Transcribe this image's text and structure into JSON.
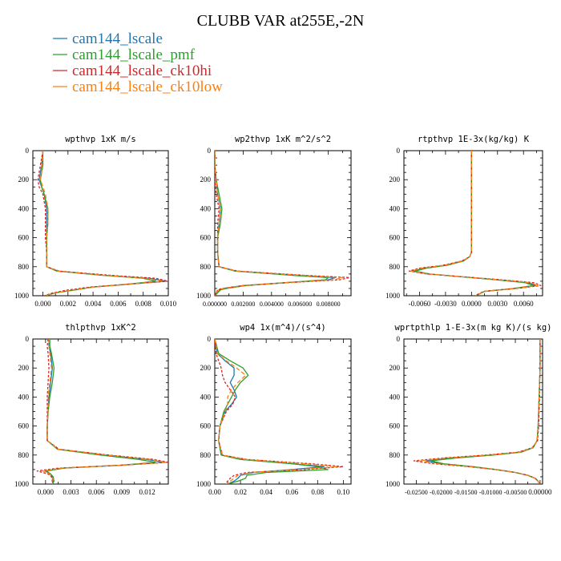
{
  "figure": {
    "title": "CLUBB VAR at255E,-2N",
    "legend": [
      {
        "name": "cam144_lscale",
        "color": "#1f77b4"
      },
      {
        "name": "cam144_lscale_pmf",
        "color": "#2ca02c"
      },
      {
        "name": "cam144_lscale_ck10hi",
        "color": "#d62728"
      },
      {
        "name": "cam144_lscale_ck10low",
        "color": "#ff7f0e"
      }
    ],
    "series_colors": [
      "#1f77b4",
      "#2ca02c",
      "#d62728",
      "#ff7f0e"
    ],
    "series_dash": [
      "",
      "",
      "3,2",
      "5,3"
    ]
  },
  "chart_data": [
    {
      "type": "line",
      "title": "wpthvp 1xK m/s",
      "xlim": [
        -0.0008,
        0.01
      ],
      "ylim": [
        1000,
        0
      ],
      "xticks": [
        "0.000",
        "0.002",
        "0.004",
        "0.006",
        "0.008",
        "0.010"
      ],
      "xtick_values": [
        0,
        0.002,
        0.004,
        0.006,
        0.008,
        0.01
      ],
      "yticks": [
        "0",
        "200",
        "400",
        "600",
        "800",
        "1000"
      ],
      "ytick_values": [
        0,
        200,
        400,
        600,
        800,
        1000
      ],
      "y": [
        0,
        100,
        150,
        200,
        250,
        300,
        400,
        500,
        600,
        700,
        800,
        830,
        860,
        880,
        900,
        920,
        940,
        960,
        980,
        1000
      ],
      "series": [
        {
          "values": [
            0.0,
            -0.0001,
            -0.0002,
            -0.0003,
            -0.0001,
            0.0001,
            0.0003,
            0.0003,
            0.0003,
            0.0003,
            0.0003,
            0.0012,
            0.005,
            0.0085,
            0.0098,
            0.007,
            0.004,
            0.0025,
            0.001,
            0.0002
          ]
        },
        {
          "values": [
            0.0,
            0.0,
            -0.0001,
            -0.0002,
            -0.0001,
            0.0001,
            0.0004,
            0.0004,
            0.0003,
            0.0003,
            0.0003,
            0.0011,
            0.0048,
            0.008,
            0.009,
            0.0068,
            0.004,
            0.0026,
            0.001,
            0.0002
          ]
        },
        {
          "values": [
            0.0,
            -0.0002,
            -0.0003,
            -0.0004,
            -0.0003,
            0.0,
            0.0002,
            0.0002,
            0.0002,
            0.0003,
            0.0003,
            0.0013,
            0.0055,
            0.009,
            0.01,
            0.0068,
            0.0038,
            0.002,
            0.0008,
            0.0001
          ]
        },
        {
          "values": [
            0.0,
            -0.0001,
            -0.0001,
            -0.0002,
            0.0,
            0.0002,
            0.0004,
            0.0004,
            0.0003,
            0.0003,
            0.0003,
            0.0012,
            0.005,
            0.0082,
            0.0095,
            0.007,
            0.0041,
            0.0024,
            0.001,
            0.0002
          ]
        }
      ]
    },
    {
      "type": "line",
      "title": "wp2thvp 1xK m^2/s^2",
      "xlim": [
        0,
        0.0096
      ],
      "ylim": [
        1000,
        0
      ],
      "xticks": [
        "0.000000",
        "0.002000",
        "0.004000",
        "0.006000",
        "0.008000"
      ],
      "xtick_values": [
        0,
        0.002,
        0.004,
        0.006,
        0.008
      ],
      "yticks": [
        "0",
        "200",
        "400",
        "600",
        "800",
        "1000"
      ],
      "ytick_values": [
        0,
        200,
        400,
        600,
        800,
        1000
      ],
      "y": [
        0,
        100,
        200,
        300,
        400,
        500,
        600,
        700,
        800,
        830,
        860,
        875,
        890,
        910,
        930,
        950,
        960,
        980,
        1000
      ],
      "series": [
        {
          "values": [
            0.0,
            0.0,
            0.0001,
            0.0002,
            0.0004,
            0.0003,
            0.0002,
            0.0002,
            0.0003,
            0.0015,
            0.006,
            0.0085,
            0.008,
            0.005,
            0.002,
            0.0006,
            0.0003,
            0.0001,
            0.0
          ]
        },
        {
          "values": [
            0.0,
            0.0,
            0.0001,
            0.0003,
            0.0005,
            0.0004,
            0.0002,
            0.0002,
            0.0003,
            0.0014,
            0.0055,
            0.008,
            0.0078,
            0.005,
            0.0022,
            0.0008,
            0.0004,
            0.0002,
            0.0
          ]
        },
        {
          "values": [
            0.0,
            0.0,
            0.0,
            0.0001,
            0.0003,
            0.0002,
            0.0002,
            0.0002,
            0.0003,
            0.0016,
            0.0065,
            0.0095,
            0.0088,
            0.0052,
            0.002,
            0.0005,
            0.0002,
            0.0001,
            0.0
          ]
        },
        {
          "values": [
            0.0,
            0.0,
            0.0001,
            0.0002,
            0.0004,
            0.0003,
            0.0002,
            0.0002,
            0.0003,
            0.0015,
            0.0062,
            0.009,
            0.0084,
            0.0051,
            0.0021,
            0.0006,
            0.0003,
            0.0001,
            0.0
          ]
        }
      ]
    },
    {
      "type": "line",
      "title": "rtpthvp 1E-3x(kg/kg) K",
      "xlim": [
        -0.0078,
        0.0082
      ],
      "ylim": [
        1000,
        0
      ],
      "xticks": [
        "-0.0060",
        "-0.0030",
        "0.0000",
        "0.0030",
        "0.0060"
      ],
      "xtick_values": [
        -0.006,
        -0.003,
        0,
        0.003,
        0.006
      ],
      "yticks": [
        "0",
        "200",
        "400",
        "600",
        "800",
        "1000"
      ],
      "ytick_values": [
        0,
        200,
        400,
        600,
        800,
        1000
      ],
      "y": [
        0,
        200,
        400,
        600,
        700,
        730,
        760,
        790,
        810,
        830,
        850,
        870,
        890,
        910,
        930,
        950,
        970,
        985,
        1000
      ],
      "series": [
        {
          "values": [
            0.0,
            0.0,
            0.0,
            0.0,
            0.0,
            -0.0002,
            -0.001,
            -0.003,
            -0.0055,
            -0.0068,
            -0.005,
            -0.001,
            0.003,
            0.0065,
            0.0075,
            0.005,
            0.0015,
            0.001,
            0.0005
          ]
        },
        {
          "values": [
            0.0,
            0.0,
            0.0,
            0.0,
            0.0,
            -0.0002,
            -0.0009,
            -0.0028,
            -0.0052,
            -0.0065,
            -0.0048,
            -0.001,
            0.0028,
            0.0062,
            0.0072,
            0.0048,
            0.0015,
            0.001,
            0.0005
          ]
        },
        {
          "values": [
            0.0,
            0.0,
            0.0,
            0.0,
            0.0,
            -0.0002,
            -0.0011,
            -0.0033,
            -0.006,
            -0.0072,
            -0.0052,
            -0.0008,
            0.0035,
            0.0072,
            0.008,
            0.0052,
            0.0014,
            0.0009,
            0.0004
          ]
        },
        {
          "values": [
            0.0,
            0.0,
            0.0,
            0.0,
            0.0,
            -0.0002,
            -0.001,
            -0.0031,
            -0.0057,
            -0.007,
            -0.005,
            -0.0009,
            0.0032,
            0.0068,
            0.0077,
            0.005,
            0.0015,
            0.001,
            0.0005
          ]
        }
      ]
    },
    {
      "type": "line",
      "title": "thlpthvp 1xK^2",
      "xlim": [
        -0.0015,
        0.0145
      ],
      "ylim": [
        1000,
        0
      ],
      "xticks": [
        "0.000",
        "0.003",
        "0.006",
        "0.009",
        "0.012"
      ],
      "xtick_values": [
        0,
        0.003,
        0.006,
        0.009,
        0.012
      ],
      "yticks": [
        "0",
        "200",
        "400",
        "600",
        "800",
        "1000"
      ],
      "ytick_values": [
        0,
        200,
        400,
        600,
        800,
        1000
      ],
      "y": [
        0,
        50,
        100,
        200,
        300,
        400,
        500,
        600,
        700,
        760,
        800,
        830,
        850,
        870,
        890,
        910,
        930,
        950,
        980,
        1000
      ],
      "series": [
        {
          "values": [
            0.0004,
            0.0004,
            0.0006,
            0.0008,
            0.0006,
            0.0004,
            0.0003,
            0.0002,
            0.0002,
            0.0015,
            0.007,
            0.012,
            0.014,
            0.009,
            0.002,
            0.0,
            0.0005,
            0.0008,
            0.0009,
            0.0008
          ]
        },
        {
          "values": [
            0.0005,
            0.0005,
            0.0007,
            0.001,
            0.0008,
            0.0005,
            0.0003,
            0.0002,
            0.0002,
            0.0014,
            0.0065,
            0.011,
            0.013,
            0.0088,
            0.0022,
            0.0001,
            0.0006,
            0.0009,
            0.001,
            0.0008
          ]
        },
        {
          "values": [
            0.0003,
            0.0002,
            0.0003,
            0.0004,
            0.0003,
            0.0002,
            0.0002,
            0.0002,
            0.0002,
            0.0016,
            0.0075,
            0.0128,
            0.0145,
            0.009,
            0.0015,
            -0.001,
            0.0003,
            0.0007,
            0.0008,
            0.0007
          ]
        },
        {
          "values": [
            0.0004,
            0.0004,
            0.0005,
            0.0007,
            0.0005,
            0.0003,
            0.0003,
            0.0002,
            0.0002,
            0.0015,
            0.0072,
            0.0124,
            0.0142,
            0.009,
            0.0019,
            -0.0003,
            0.0005,
            0.0008,
            0.0009,
            0.0008
          ]
        }
      ]
    },
    {
      "type": "line",
      "title": "wp4 1x(m^4)/(s^4)",
      "xlim": [
        0,
        0.106
      ],
      "ylim": [
        1000,
        0
      ],
      "xticks": [
        "0.00",
        "0.02",
        "0.04",
        "0.06",
        "0.08",
        "0.10"
      ],
      "xtick_values": [
        0,
        0.02,
        0.04,
        0.06,
        0.08,
        0.1
      ],
      "yticks": [
        "0",
        "200",
        "400",
        "600",
        "800",
        "1000"
      ],
      "ytick_values": [
        0,
        200,
        400,
        600,
        800,
        1000
      ],
      "y": [
        0,
        100,
        150,
        200,
        250,
        300,
        350,
        400,
        450,
        500,
        600,
        700,
        800,
        830,
        860,
        880,
        900,
        920,
        940,
        960,
        980,
        1000
      ],
      "series": [
        {
          "values": [
            0.0,
            0.002,
            0.008,
            0.015,
            0.015,
            0.012,
            0.015,
            0.017,
            0.013,
            0.008,
            0.004,
            0.003,
            0.005,
            0.02,
            0.06,
            0.085,
            0.06,
            0.03,
            0.02,
            0.018,
            0.015,
            0.01
          ]
        },
        {
          "values": [
            0.0,
            0.003,
            0.012,
            0.022,
            0.026,
            0.02,
            0.016,
            0.013,
            0.01,
            0.007,
            0.004,
            0.003,
            0.005,
            0.02,
            0.06,
            0.08,
            0.088,
            0.04,
            0.025,
            0.024,
            0.018,
            0.01
          ]
        },
        {
          "values": [
            0.0,
            0.001,
            0.003,
            0.005,
            0.006,
            0.008,
            0.012,
            0.016,
            0.014,
            0.009,
            0.004,
            0.003,
            0.006,
            0.025,
            0.075,
            0.1,
            0.07,
            0.025,
            0.015,
            0.012,
            0.01,
            0.008
          ]
        },
        {
          "values": [
            0.0,
            0.002,
            0.009,
            0.017,
            0.024,
            0.018,
            0.013,
            0.01,
            0.01,
            0.008,
            0.004,
            0.003,
            0.006,
            0.024,
            0.07,
            0.095,
            0.065,
            0.028,
            0.018,
            0.015,
            0.012,
            0.009
          ]
        }
      ]
    },
    {
      "type": "line",
      "title": "wprtpthlp 1-E-3x(m kg K)/(s kg)",
      "xlim": [
        -0.0275,
        0.0005
      ],
      "ylim": [
        1000,
        0
      ],
      "xticks": [
        "-0.02500",
        "-0.02000",
        "-0.01500",
        "-0.01000",
        "-0.00500",
        "0.00000"
      ],
      "xtick_values": [
        -0.025,
        -0.02,
        -0.015,
        -0.01,
        -0.005,
        0
      ],
      "yticks": [
        "0",
        "200",
        "400",
        "600",
        "800",
        "1000"
      ],
      "ytick_values": [
        0,
        200,
        400,
        600,
        800,
        1000
      ],
      "y": [
        0,
        100,
        200,
        300,
        400,
        500,
        600,
        700,
        750,
        780,
        800,
        820,
        840,
        860,
        880,
        900,
        920,
        940,
        960,
        980,
        1000
      ],
      "series": [
        {
          "values": [
            0.0,
            0.0,
            0.0,
            -0.0001,
            -0.0002,
            -0.0003,
            -0.0004,
            -0.0006,
            -0.0015,
            -0.004,
            -0.01,
            -0.018,
            -0.023,
            -0.02,
            -0.014,
            -0.009,
            -0.005,
            -0.0025,
            -0.001,
            -0.0004,
            -0.0001
          ]
        },
        {
          "values": [
            0.0,
            0.0,
            0.0,
            -0.0001,
            -0.0002,
            -0.0003,
            -0.0004,
            -0.0006,
            -0.0014,
            -0.0038,
            -0.0095,
            -0.017,
            -0.022,
            -0.0195,
            -0.0135,
            -0.0088,
            -0.005,
            -0.0025,
            -0.001,
            -0.0004,
            -0.0001
          ]
        },
        {
          "values": [
            0.0,
            0.0,
            0.0,
            -0.0001,
            -0.0001,
            -0.0002,
            -0.0003,
            -0.0005,
            -0.0016,
            -0.0045,
            -0.011,
            -0.0195,
            -0.0255,
            -0.0215,
            -0.0145,
            -0.009,
            -0.005,
            -0.0024,
            -0.001,
            -0.0004,
            -0.0001
          ]
        },
        {
          "values": [
            0.0,
            0.0,
            0.0,
            -0.0001,
            -0.0002,
            -0.0003,
            -0.0004,
            -0.0006,
            -0.0015,
            -0.0042,
            -0.0105,
            -0.0188,
            -0.0245,
            -0.0208,
            -0.0142,
            -0.009,
            -0.005,
            -0.0025,
            -0.001,
            -0.0004,
            -0.0001
          ]
        }
      ]
    }
  ]
}
